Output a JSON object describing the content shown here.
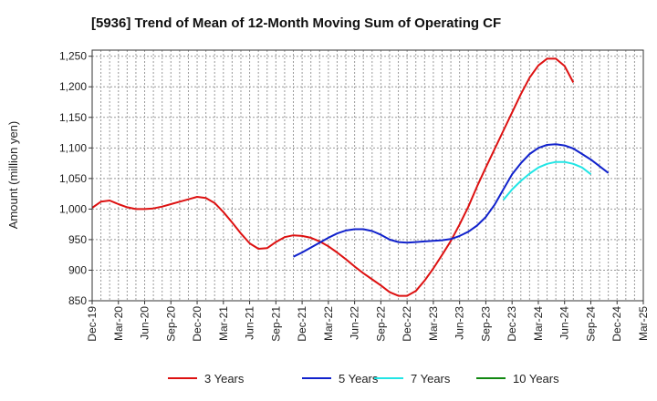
{
  "chart_data": {
    "type": "line",
    "title": "[5936]  Trend of Mean of 12-Month Moving Sum of Operating CF",
    "xlabel": "",
    "ylabel": "Amount (million yen)",
    "ylim": [
      850,
      1260
    ],
    "yticks": [
      850,
      900,
      950,
      1000,
      1050,
      1100,
      1150,
      1200,
      1250
    ],
    "ytick_labels": [
      "850",
      "900",
      "950",
      "1,000",
      "1,050",
      "1,100",
      "1,150",
      "1,200",
      "1,250"
    ],
    "x_range": [
      "Dec-19",
      "Mar-25"
    ],
    "x_tick_labels": [
      "Dec-19",
      "Mar-20",
      "Jun-20",
      "Sep-20",
      "Dec-20",
      "Mar-21",
      "Jun-21",
      "Sep-21",
      "Dec-21",
      "Mar-22",
      "Jun-22",
      "Sep-22",
      "Dec-22",
      "Mar-23",
      "Jun-23",
      "Sep-23",
      "Dec-23",
      "Mar-24",
      "Jun-24",
      "Sep-24",
      "Dec-24",
      "Mar-25"
    ],
    "grid": true,
    "legend_position": "bottom",
    "series": [
      {
        "name": "3 Years",
        "color": "#dd1111",
        "start": "Dec-19",
        "values": [
          1002,
          1012,
          1014,
          1008,
          1003,
          1000,
          1000,
          1001,
          1004,
          1008,
          1012,
          1016,
          1020,
          1018,
          1010,
          995,
          978,
          960,
          944,
          935,
          936,
          946,
          954,
          957,
          956,
          953,
          947,
          939,
          929,
          918,
          906,
          895,
          885,
          875,
          864,
          858,
          858,
          866,
          883,
          903,
          925,
          948,
          975,
          1004,
          1037,
          1068,
          1098,
          1128,
          1158,
          1188,
          1215,
          1235,
          1246,
          1246,
          1234,
          1207
        ]
      },
      {
        "name": "5 Years",
        "color": "#1122cc",
        "start": "Nov-21",
        "values": [
          922,
          929,
          937,
          945,
          953,
          960,
          965,
          967,
          967,
          964,
          958,
          950,
          946,
          945,
          946,
          947,
          948,
          949,
          951,
          956,
          963,
          973,
          987,
          1007,
          1032,
          1057,
          1075,
          1090,
          1100,
          1105,
          1106,
          1104,
          1099,
          1090,
          1081,
          1070,
          1059
        ]
      },
      {
        "name": "7 Years",
        "color": "#22e5e5",
        "start": "Nov-23",
        "values": [
          1015,
          1032,
          1046,
          1058,
          1068,
          1074,
          1077,
          1077,
          1074,
          1068,
          1057
        ]
      },
      {
        "name": "10 Years",
        "color": "#118811",
        "start": "Sep-24",
        "values": []
      }
    ]
  }
}
